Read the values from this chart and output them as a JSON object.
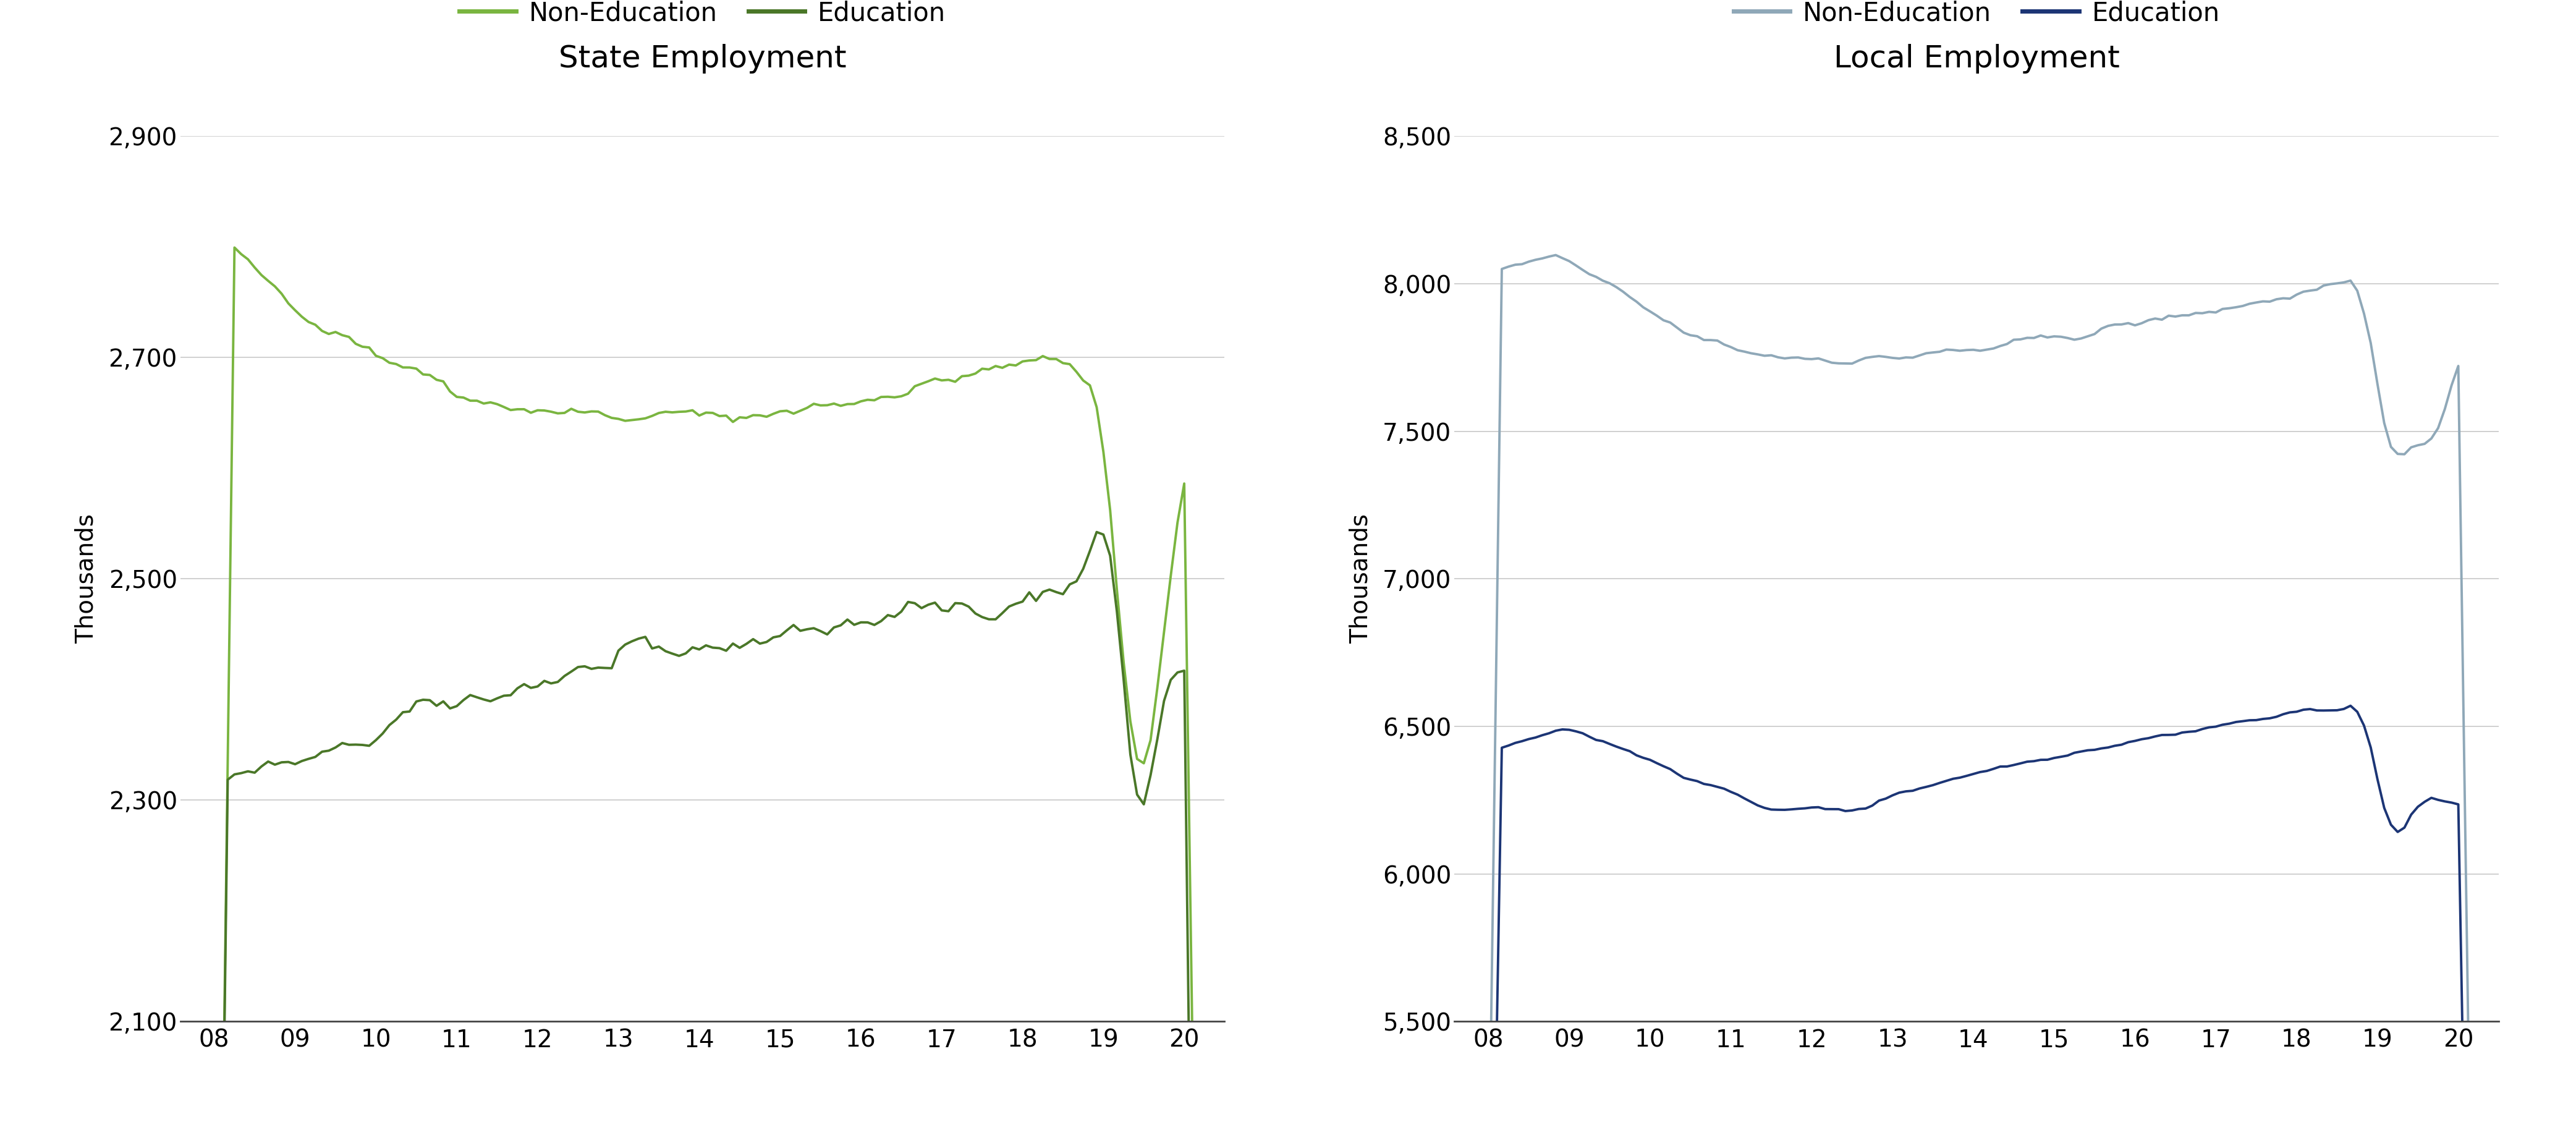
{
  "state_title": "State Employment",
  "local_title": "Local Employment",
  "ylabel": "Thousands",
  "state_ylim": [
    2100,
    2900
  ],
  "state_yticks": [
    2100,
    2300,
    2500,
    2700,
    2900
  ],
  "local_ylim": [
    5500,
    8500
  ],
  "local_yticks": [
    5500,
    6000,
    6500,
    7000,
    7500,
    8000,
    8500
  ],
  "xtick_labels": [
    "08",
    "09",
    "10",
    "11",
    "12",
    "13",
    "14",
    "15",
    "16",
    "17",
    "18",
    "19",
    "20"
  ],
  "state_nonedu_color": "#7ab540",
  "state_edu_color": "#4a7728",
  "local_nonedu_color": "#8fa8b8",
  "local_edu_color": "#1c3575",
  "legend_nonedu": "Non-Education",
  "legend_edu": "Education",
  "title_fontsize": 36,
  "legend_fontsize": 30,
  "tick_fontsize": 28,
  "ylabel_fontsize": 28,
  "linewidth": 2.8,
  "background_color": "#ffffff",
  "grid_color": "#c8c8c8"
}
